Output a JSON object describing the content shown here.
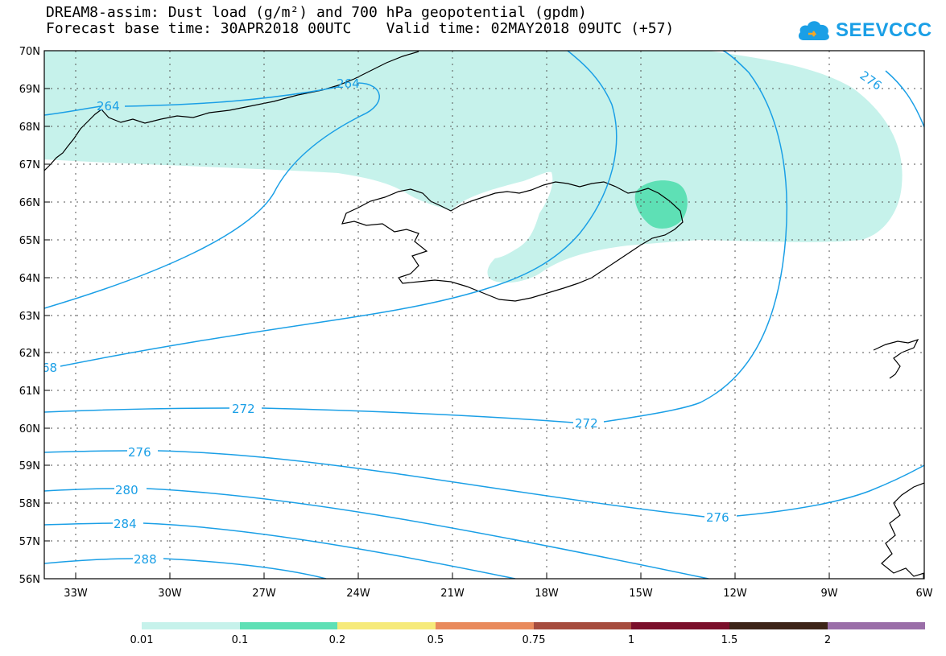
{
  "header": {
    "title_line1": "DREAM8-assim: Dust load (g/m²) and 700 hPa geopotential (gpdm)",
    "title_line2": "Forecast base time: 30APR2018 00UTC    Valid time: 02MAY2018 09UTC (+57)",
    "logo_text": "SEEVCCC"
  },
  "map": {
    "lon_labels": [
      "33W",
      "30W",
      "27W",
      "24W",
      "21W",
      "18W",
      "15W",
      "12W",
      "9W",
      "6W"
    ],
    "lat_labels": [
      "70N",
      "69N",
      "68N",
      "67N",
      "66N",
      "65N",
      "64N",
      "63N",
      "62N",
      "61N",
      "60N",
      "59N",
      "58N",
      "57N",
      "56N"
    ],
    "contour_labels": [
      "264",
      "264",
      "276",
      "68",
      "272",
      "272",
      "276",
      "276",
      "280",
      "284",
      "288"
    ],
    "colors": {
      "contour": "#1a9fe6",
      "coast": "#000000",
      "dust_low": "#c6f2eb",
      "dust_mid": "#5ee0b5"
    }
  },
  "colorbar": {
    "labels": [
      "0.01",
      "0.1",
      "0.2",
      "0.5",
      "0.75",
      "1",
      "1.5",
      "2"
    ],
    "colors": [
      "#c6f2eb",
      "#5ee0b5",
      "#f6ea7a",
      "#e98a5c",
      "#a64c3e",
      "#7a0f2a",
      "#3d2418",
      "#9a6ea8"
    ]
  }
}
